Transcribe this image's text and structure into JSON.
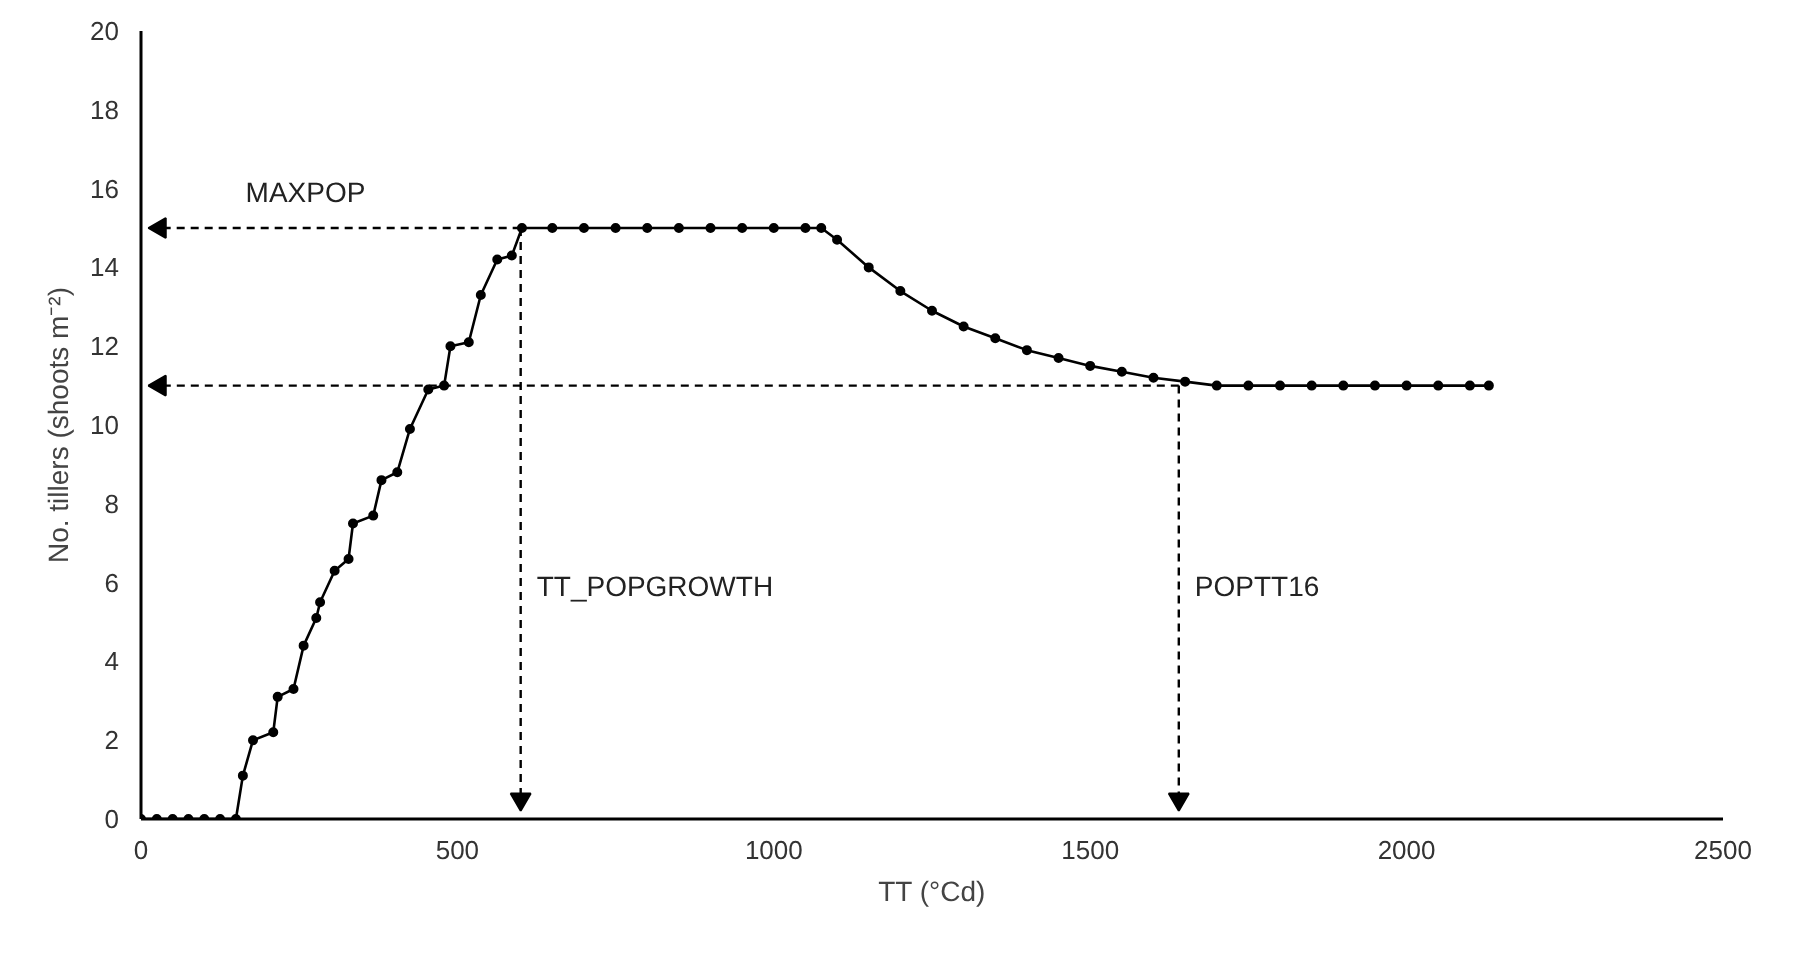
{
  "chart_data": {
    "type": "line",
    "xlabel": "TT (°Cd)",
    "ylabel": "No. tillers (shoots m⁻²)",
    "xlim": [
      0,
      2500
    ],
    "ylim": [
      0,
      20
    ],
    "xticks": [
      0,
      500,
      1000,
      1500,
      2000,
      2500
    ],
    "yticks": [
      0,
      2,
      4,
      6,
      8,
      10,
      12,
      14,
      16,
      18,
      20
    ],
    "grid": false,
    "marker": "circle",
    "line_style": "solid",
    "series": [
      {
        "color": "#000000",
        "x": [
          0,
          25,
          50,
          75,
          100,
          125,
          150,
          161,
          177,
          209,
          216,
          241,
          257,
          277,
          283,
          306,
          328,
          335,
          367,
          380,
          405,
          425,
          454,
          479,
          489,
          518,
          537,
          563,
          586,
          602,
          650,
          700,
          750,
          800,
          850,
          900,
          950,
          1000,
          1050,
          1075,
          1100,
          1150,
          1200,
          1250,
          1300,
          1350,
          1400,
          1450,
          1500,
          1550,
          1600,
          1650,
          1700,
          1750,
          1800,
          1850,
          1900,
          1950,
          2000,
          2050,
          2100,
          2130
        ],
        "values": [
          0,
          0,
          0,
          0,
          0,
          0,
          0,
          1.1,
          2.0,
          2.2,
          3.1,
          3.3,
          4.4,
          5.1,
          5.5,
          6.3,
          6.6,
          7.5,
          7.7,
          8.6,
          8.8,
          9.9,
          10.9,
          11.0,
          12.0,
          12.1,
          13.3,
          14.2,
          14.3,
          15.0,
          15.0,
          15.0,
          15.0,
          15.0,
          15.0,
          15.0,
          15.0,
          15.0,
          15.0,
          15.0,
          14.7,
          14.0,
          13.4,
          12.9,
          12.5,
          12.2,
          11.9,
          11.7,
          11.5,
          11.35,
          11.2,
          11.1,
          11.0,
          11.0,
          11.0,
          11.0,
          11.0,
          11.0,
          11.0,
          11.0,
          11.0,
          11.0
        ]
      },
      {
        "color": "#000000",
        "line_style": "dashed",
        "marker": "triangle",
        "x": [
          600,
          30
        ],
        "values": [
          15,
          15
        ]
      },
      {
        "color": "#000000",
        "line_style": "dashed",
        "marker": "triangle",
        "x": [
          1640,
          30
        ],
        "values": [
          11,
          11
        ]
      },
      {
        "color": "#000000",
        "line_style": "dashed",
        "marker": "triangle",
        "x": [
          600,
          600
        ],
        "values": [
          15,
          0.5
        ]
      },
      {
        "color": "#000000",
        "line_style": "dashed",
        "marker": "triangle",
        "x": [
          1640,
          1640
        ],
        "values": [
          11,
          0.5
        ]
      }
    ],
    "annotations": [
      {
        "text": "MAXPOP",
        "x": 140,
        "y": 15
      },
      {
        "text": "TT_POPGROWTH",
        "x": 600,
        "y": 5
      },
      {
        "text": "POPTT16",
        "x": 1640,
        "y": 5
      }
    ]
  }
}
